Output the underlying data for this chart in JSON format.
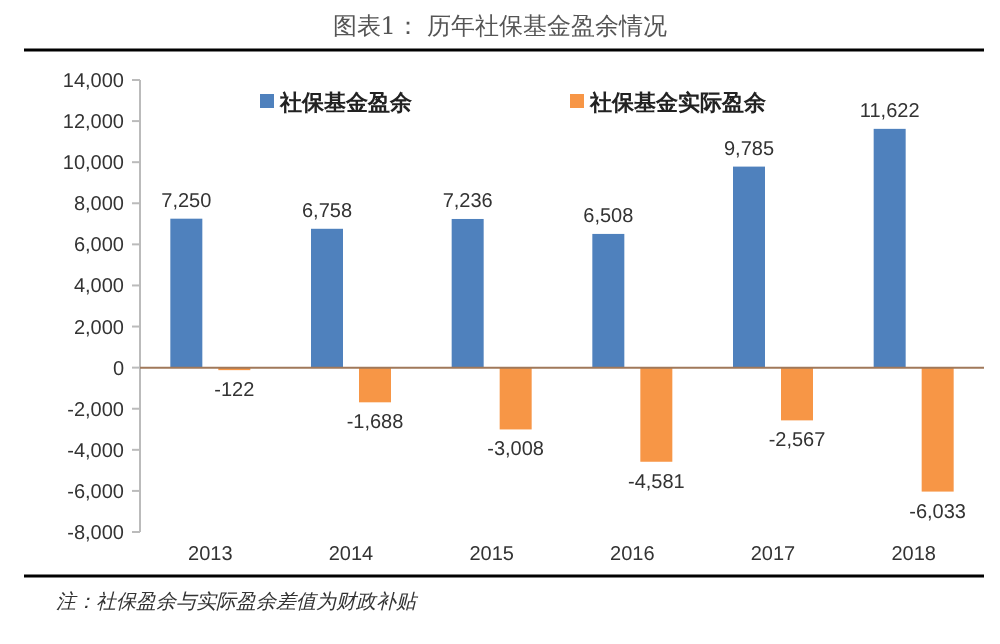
{
  "chart_data": {
    "type": "bar",
    "title": "图表1：  历年社保基金盈余情况",
    "categories": [
      "2013",
      "2014",
      "2015",
      "2016",
      "2017",
      "2018"
    ],
    "series": [
      {
        "name": "社保基金盈余",
        "color": "#4f81bd",
        "values": [
          7250,
          6758,
          7236,
          6508,
          9785,
          11622
        ],
        "value_labels": [
          "7,250",
          "6,758",
          "7,236",
          "6,508",
          "9,785",
          "11,622"
        ]
      },
      {
        "name": "社保基金实际盈余",
        "color": "#f79646",
        "values": [
          -122,
          -1688,
          -3008,
          -4581,
          -2567,
          -6033
        ],
        "value_labels": [
          "-122",
          "-1,688",
          "-3,008",
          "-4,581",
          "-2,567",
          "-6,033"
        ]
      }
    ],
    "ylim": [
      -8000,
      14000
    ],
    "yticks": [
      {
        "value": -8000,
        "label": "-8,000"
      },
      {
        "value": -6000,
        "label": "-6,000"
      },
      {
        "value": -4000,
        "label": "-4,000"
      },
      {
        "value": -2000,
        "label": "-2,000"
      },
      0,
      {
        "value": 2000,
        "label": "2,000"
      },
      {
        "value": 4000,
        "label": "4,000"
      },
      {
        "value": 6000,
        "label": "6,000"
      },
      {
        "value": 8000,
        "label": "8,000"
      },
      {
        "value": 10000,
        "label": "10,000"
      },
      {
        "value": 12000,
        "label": "12,000"
      },
      {
        "value": 14000,
        "label": "14,000"
      }
    ],
    "legend": "top",
    "grid": false,
    "ref_lines": [
      {
        "axis": "y",
        "value": 0,
        "color": "#a0785a"
      }
    ],
    "annotations": [
      "注：社保盈余与实际盈余差值为财政补贴"
    ]
  }
}
